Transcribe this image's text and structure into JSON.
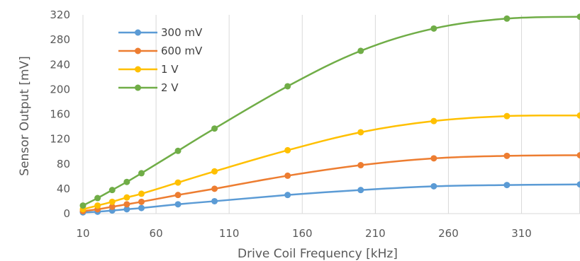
{
  "chart_data": {
    "type": "line",
    "title": "",
    "xlabel": "Drive Coil Frequency [kHz]",
    "ylabel": "Sensor Output [mV]",
    "xlim": [
      10,
      350
    ],
    "ylim": [
      0,
      320
    ],
    "xticks": [
      10,
      60,
      110,
      160,
      210,
      260,
      310
    ],
    "yticks": [
      0,
      40,
      80,
      120,
      160,
      200,
      240,
      280,
      320
    ],
    "grid": "vertical",
    "legend_position": "top-left",
    "x": [
      10,
      20,
      30,
      40,
      50,
      75,
      100,
      150,
      200,
      250,
      300,
      350
    ],
    "series": [
      {
        "name": "300 mV",
        "color": "#5B9BD5",
        "values": [
          2,
          3,
          5,
          7,
          9,
          15,
          20,
          30,
          38,
          44,
          46,
          47
        ]
      },
      {
        "name": "600 mV",
        "color": "#ED7D31",
        "values": [
          4,
          7,
          11,
          15,
          19,
          30,
          40,
          61,
          78,
          89,
          93,
          94
        ]
      },
      {
        "name": "1 V",
        "color": "#FFC000",
        "values": [
          7,
          13,
          19,
          26,
          32,
          50,
          68,
          102,
          131,
          149,
          157,
          158
        ]
      },
      {
        "name": "2 V",
        "color": "#70AD47",
        "values": [
          13,
          25,
          38,
          51,
          65,
          101,
          137,
          205,
          262,
          298,
          314,
          317
        ]
      }
    ]
  }
}
